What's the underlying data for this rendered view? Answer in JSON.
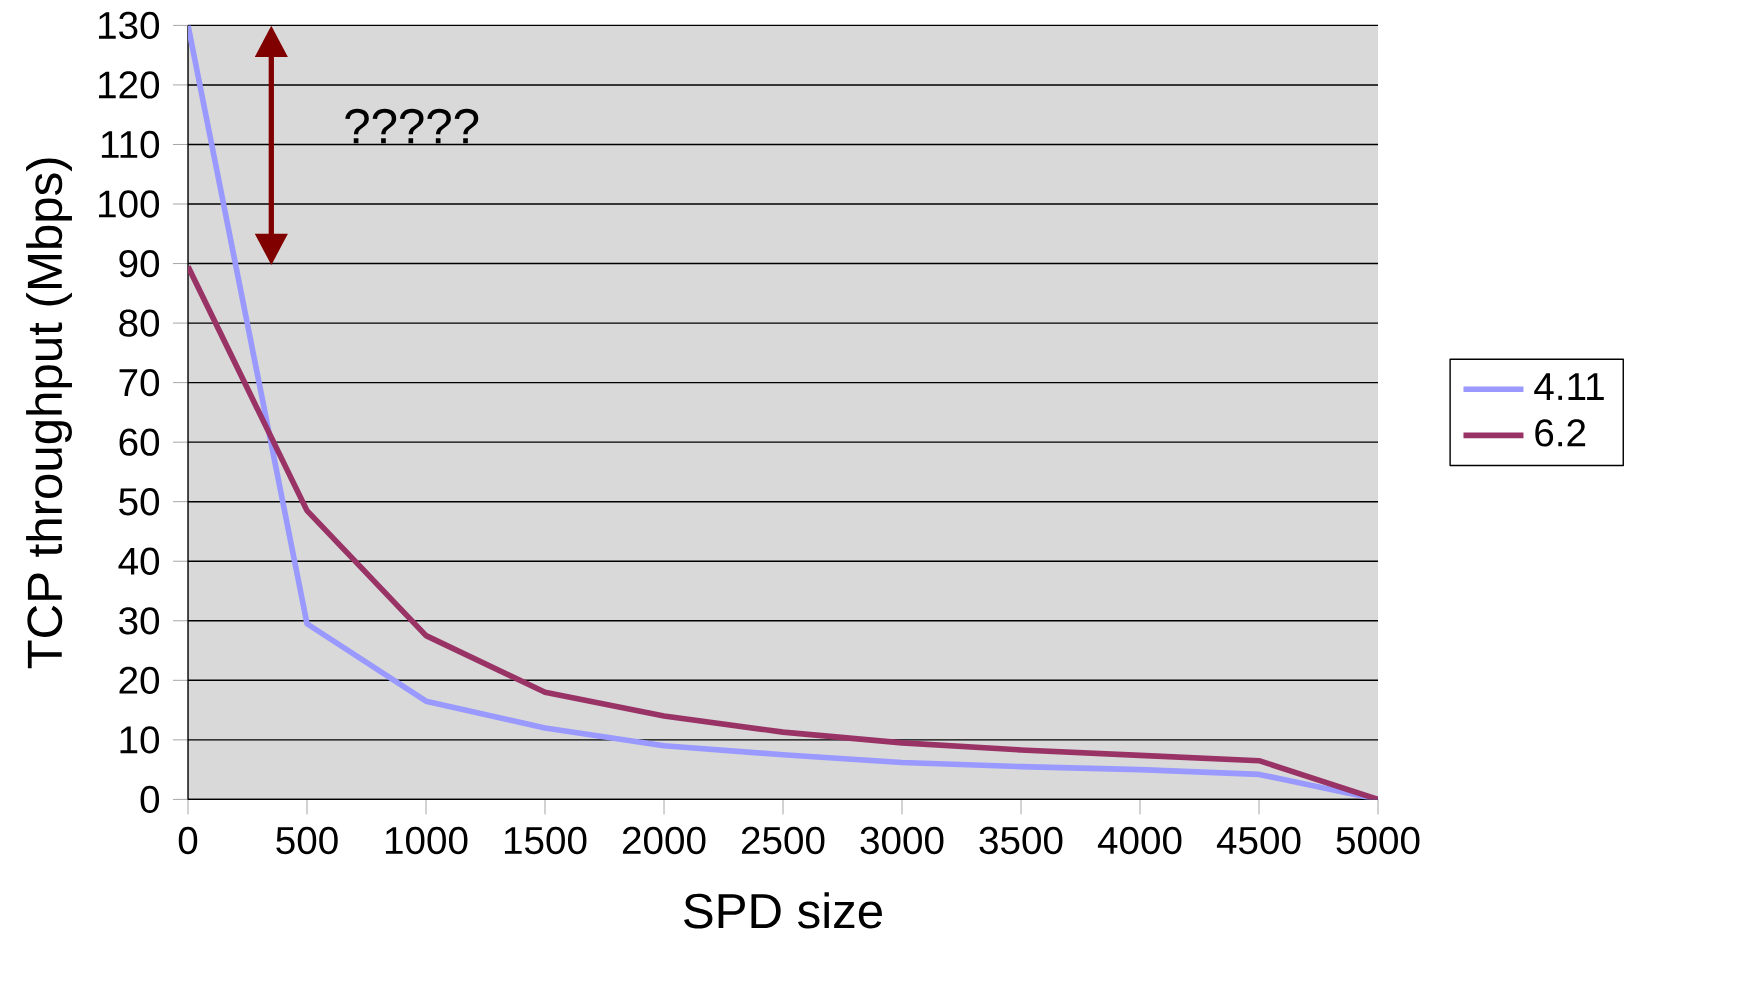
{
  "chart_data": {
    "type": "line",
    "xlabel": "SPD size",
    "ylabel": "TCP throughput (Mbps)",
    "categories": [
      "0",
      "500",
      "1000",
      "1500",
      "2000",
      "2500",
      "3000",
      "3500",
      "4000",
      "4500",
      "5000"
    ],
    "series": [
      {
        "name": "4.11",
        "color": "#9999ff",
        "values": [
          130,
          29.5,
          16.5,
          12,
          9,
          7.5,
          6.2,
          5.5,
          5,
          4.2,
          0
        ]
      },
      {
        "name": "6.2",
        "color": "#993366",
        "values": [
          89.5,
          48.5,
          27.5,
          18,
          14,
          11.3,
          9.5,
          8.3,
          7.4,
          6.5,
          0
        ]
      }
    ],
    "ylim": [
      0,
      130
    ],
    "yticks": [
      0,
      10,
      20,
      30,
      40,
      50,
      60,
      70,
      80,
      90,
      100,
      110,
      120,
      130
    ],
    "grid": "y",
    "legend": "right",
    "marker": "none",
    "line_style": "solid",
    "annotations": [
      "?????"
    ]
  }
}
